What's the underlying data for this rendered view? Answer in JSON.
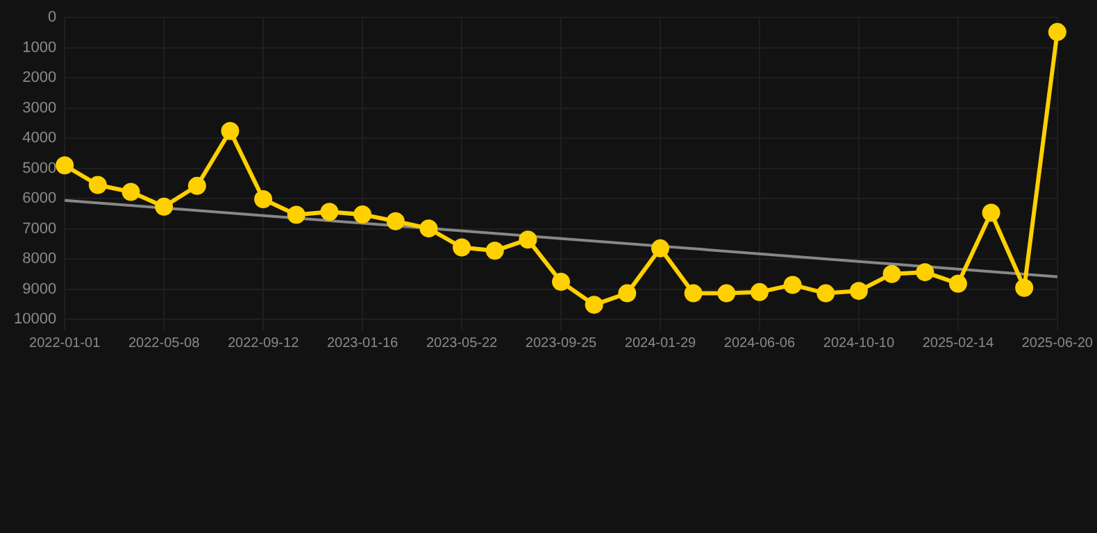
{
  "chart_data": {
    "type": "line",
    "categories": [
      "2022-01-01",
      null,
      null,
      "2022-05-08",
      null,
      null,
      "2022-09-12",
      null,
      null,
      "2023-01-16",
      null,
      null,
      "2023-05-22",
      null,
      null,
      "2023-09-25",
      null,
      null,
      "2024-01-29",
      null,
      null,
      "2024-06-06",
      null,
      null,
      "2024-10-10",
      null,
      null,
      "2025-02-14",
      null,
      null,
      "2025-06-20"
    ],
    "series": [
      {
        "color": "#ffd000",
        "marker": "circle",
        "values": [
          4900,
          5550,
          5780,
          6270,
          5580,
          3760,
          6020,
          6540,
          6440,
          6530,
          6750,
          6990,
          7620,
          7730,
          7360,
          8760,
          9520,
          9140,
          7650,
          9140,
          9140,
          9100,
          8860,
          9140,
          9060,
          8500,
          8440,
          8820,
          6470,
          8960,
          480
        ]
      },
      {
        "type": "line",
        "color": "#888888",
        "marker": "none",
        "values": [
          6060,
          null,
          null,
          null,
          null,
          null,
          null,
          null,
          null,
          null,
          null,
          null,
          null,
          null,
          null,
          null,
          null,
          null,
          null,
          null,
          null,
          null,
          null,
          null,
          null,
          null,
          null,
          null,
          null,
          null,
          8590
        ]
      }
    ],
    "ylim": [
      10000,
      0
    ],
    "yticks": [
      0,
      1000,
      2000,
      3000,
      4000,
      5000,
      6000,
      7000,
      8000,
      9000,
      10000
    ],
    "grid": true,
    "legend": false,
    "line_style": "solid"
  }
}
